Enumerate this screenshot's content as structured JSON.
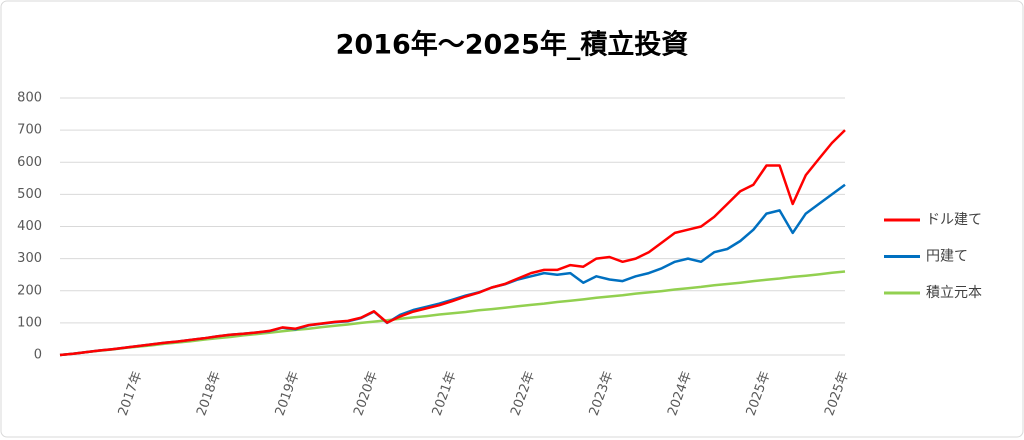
{
  "chart_data": {
    "type": "line",
    "title": "2016年～2025年_積立投資",
    "categories": [
      null,
      null,
      null,
      null,
      null,
      null,
      "2017年",
      null,
      null,
      null,
      null,
      null,
      "2018年",
      null,
      null,
      null,
      null,
      null,
      "2019年",
      null,
      null,
      null,
      null,
      null,
      "2020年",
      null,
      null,
      null,
      null,
      null,
      "2021年",
      null,
      null,
      null,
      null,
      null,
      "2022年",
      null,
      null,
      null,
      null,
      null,
      "2023年",
      null,
      null,
      null,
      null,
      null,
      "2024年",
      null,
      null,
      null,
      null,
      null,
      "2025年",
      null,
      null,
      null,
      null,
      null,
      "2025年"
    ],
    "series": [
      {
        "name": "ドル建て",
        "color": "#ff0000",
        "values": [
          0,
          4,
          9,
          14,
          18,
          23,
          28,
          33,
          38,
          42,
          47,
          52,
          58,
          63,
          66,
          70,
          75,
          86,
          82,
          93,
          98,
          103,
          106,
          116,
          136,
          101,
          120,
          135,
          145,
          155,
          168,
          182,
          194,
          210,
          221,
          238,
          255,
          265,
          265,
          280,
          275,
          300,
          305,
          290,
          300,
          320,
          350,
          380,
          390,
          400,
          430,
          470,
          510,
          530,
          590,
          590,
          470,
          560,
          610,
          660,
          700
        ]
      },
      {
        "name": "円建て",
        "color": "#0070c0",
        "values": [
          0,
          4,
          9,
          14,
          18,
          23,
          28,
          33,
          38,
          42,
          47,
          52,
          58,
          63,
          66,
          70,
          74,
          85,
          80,
          92,
          97,
          102,
          105,
          115,
          135,
          100,
          125,
          140,
          150,
          160,
          172,
          185,
          195,
          210,
          220,
          235,
          245,
          255,
          250,
          255,
          225,
          245,
          235,
          230,
          245,
          255,
          270,
          290,
          300,
          290,
          320,
          330,
          355,
          390,
          440,
          450,
          380,
          440,
          470,
          500,
          530
        ]
      },
      {
        "name": "積立元本",
        "color": "#92d050",
        "values": [
          0,
          4,
          9,
          13,
          17,
          22,
          26,
          30,
          35,
          39,
          43,
          48,
          52,
          56,
          61,
          65,
          69,
          74,
          78,
          82,
          87,
          91,
          95,
          100,
          104,
          108,
          113,
          117,
          121,
          126,
          130,
          134,
          139,
          143,
          147,
          152,
          156,
          160,
          165,
          169,
          173,
          178,
          182,
          186,
          191,
          195,
          199,
          204,
          208,
          212,
          217,
          221,
          225,
          230,
          234,
          238,
          243,
          247,
          251,
          256,
          260
        ]
      }
    ],
    "ylim": [
      0,
      800
    ],
    "yticks": [
      0,
      100,
      200,
      300,
      400,
      500,
      600,
      700,
      800
    ],
    "grid": true,
    "legend": "right"
  }
}
